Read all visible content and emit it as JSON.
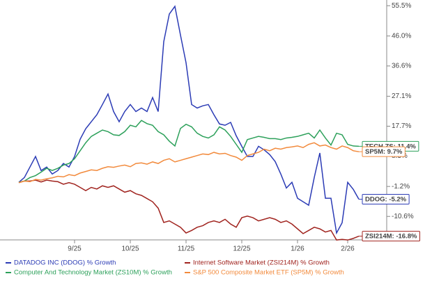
{
  "chart_data": {
    "type": "line",
    "categories": [
      null,
      null,
      null,
      null,
      null,
      null,
      null,
      null,
      null,
      null,
      "9/25",
      null,
      null,
      null,
      null,
      null,
      null,
      null,
      null,
      null,
      "10/25",
      null,
      null,
      null,
      null,
      null,
      null,
      null,
      null,
      null,
      "11/25",
      null,
      null,
      null,
      null,
      null,
      null,
      null,
      null,
      null,
      "12/25",
      null,
      null,
      null,
      null,
      null,
      null,
      null,
      null,
      null,
      "1/26",
      null,
      null,
      null,
      null,
      null,
      null,
      null,
      null,
      "2/26",
      null,
      null
    ],
    "ylim": [
      -18.4,
      56.2
    ],
    "yticks": [
      {
        "value": 55.5,
        "label": "55.5%"
      },
      {
        "value": 46.0,
        "label": "46.0%"
      },
      {
        "value": 36.6,
        "label": "36.6%"
      },
      {
        "value": 27.1,
        "label": "27.1%"
      },
      {
        "value": 17.7,
        "label": "17.7%"
      },
      {
        "value": 8.3,
        "label": "8.3%"
      },
      {
        "value": -1.2,
        "label": "-1.2%"
      },
      {
        "value": -10.6,
        "label": "-10.6%"
      }
    ],
    "series": [
      {
        "name": "DATADOG INC (DDOG) % Growth",
        "color": "#2b3bb5",
        "end_label": "DDOG: -5.2%",
        "values": [
          0.1,
          1.6,
          4.9,
          8.2,
          3.8,
          4.9,
          2.7,
          3.8,
          6.0,
          4.9,
          8.2,
          13.6,
          16.9,
          19.1,
          21.3,
          24.5,
          27.8,
          22.3,
          19.1,
          22.3,
          24.5,
          22.3,
          23.4,
          22.3,
          26.7,
          22.3,
          44.2,
          52.9,
          55.3,
          46.3,
          37.6,
          24.5,
          23.4,
          24.1,
          24.5,
          21.3,
          18.4,
          18.0,
          18.9,
          14.7,
          11.4,
          8.2,
          8.2,
          11.4,
          10.3,
          8.8,
          6.6,
          2.7,
          -1.7,
          0.1,
          -4.9,
          -6.0,
          -7.1,
          1.6,
          9.3,
          -4.9,
          -4.9,
          -15.8,
          -12.6,
          0.1,
          -2.1,
          -5.2
        ]
      },
      {
        "name": "Internet Software Market (ZSI214M) % Growth",
        "color": "#a0231e",
        "end_label": "ZSI214M: -16.8%",
        "values": [
          0,
          0.5,
          0.5,
          0.8,
          0.2,
          0.8,
          0.5,
          0.3,
          -0.5,
          0,
          -0.5,
          -1.5,
          -2.5,
          -1.5,
          -2.0,
          -1.0,
          -1.5,
          -1.0,
          -2.0,
          -3.0,
          -2.5,
          -3.5,
          -4.0,
          -5.0,
          -6.0,
          -8.0,
          -12.5,
          -12.0,
          -13.0,
          -14.0,
          -15.8,
          -15.0,
          -14.0,
          -13.5,
          -12.5,
          -12.0,
          -12.5,
          -11.5,
          -13.0,
          -14.0,
          -11.0,
          -10.5,
          -11.0,
          -12.0,
          -11.5,
          -11.0,
          -11.5,
          -12.5,
          -12.0,
          -13.0,
          -14.5,
          -16.0,
          -15.0,
          -14.0,
          -14.5,
          -15.5,
          -15.0,
          -18.0,
          -17.8,
          -18.0,
          -17.5,
          -16.8
        ]
      },
      {
        "name": "Computer And Technology Market (ZS10M) % Growth",
        "color": "#2ca05a",
        "end_label": "TECH ZS: 11.4%",
        "values": [
          0.1,
          0.5,
          1.6,
          2.2,
          3.3,
          4.5,
          3.8,
          4.5,
          5.5,
          6.0,
          7.5,
          10.0,
          12.5,
          14.5,
          15.5,
          16.5,
          16.0,
          15.0,
          14.8,
          16.0,
          18.0,
          17.5,
          19.5,
          18.5,
          18.0,
          16.0,
          15.0,
          13.0,
          11.5,
          17.0,
          18.3,
          17.5,
          15.5,
          14.5,
          14.0,
          15.0,
          17.5,
          16.5,
          14.5,
          12.0,
          9.5,
          13.5,
          14.0,
          14.5,
          14.2,
          13.8,
          13.8,
          13.5,
          14.0,
          14.2,
          14.5,
          15.0,
          15.5,
          14.0,
          16.5,
          14.0,
          11.8,
          15.5,
          15.0,
          12.0,
          11.5,
          11.4
        ]
      },
      {
        "name": "S&P 500 Composite Market ETF (SP5M) % Growth",
        "color": "#f28a3c",
        "end_label": "SP5M: 9.7%",
        "values": [
          0,
          0.5,
          0.3,
          1.0,
          0.8,
          1.2,
          1.5,
          2.0,
          1.8,
          2.5,
          2.2,
          3.0,
          3.5,
          4.0,
          3.8,
          4.5,
          5.0,
          4.8,
          5.2,
          5.5,
          5.0,
          6.0,
          6.2,
          5.8,
          6.5,
          6.0,
          7.0,
          7.5,
          6.5,
          7.0,
          7.5,
          8.0,
          8.5,
          9.0,
          8.8,
          9.5,
          9.0,
          9.2,
          8.5,
          8.0,
          7.0,
          8.5,
          9.0,
          9.5,
          10.5,
          10.0,
          10.8,
          10.5,
          11.0,
          11.2,
          11.5,
          11.0,
          12.0,
          12.5,
          11.5,
          11.8,
          11.0,
          10.5,
          11.5,
          11.0,
          10.0,
          9.7
        ]
      }
    ]
  }
}
